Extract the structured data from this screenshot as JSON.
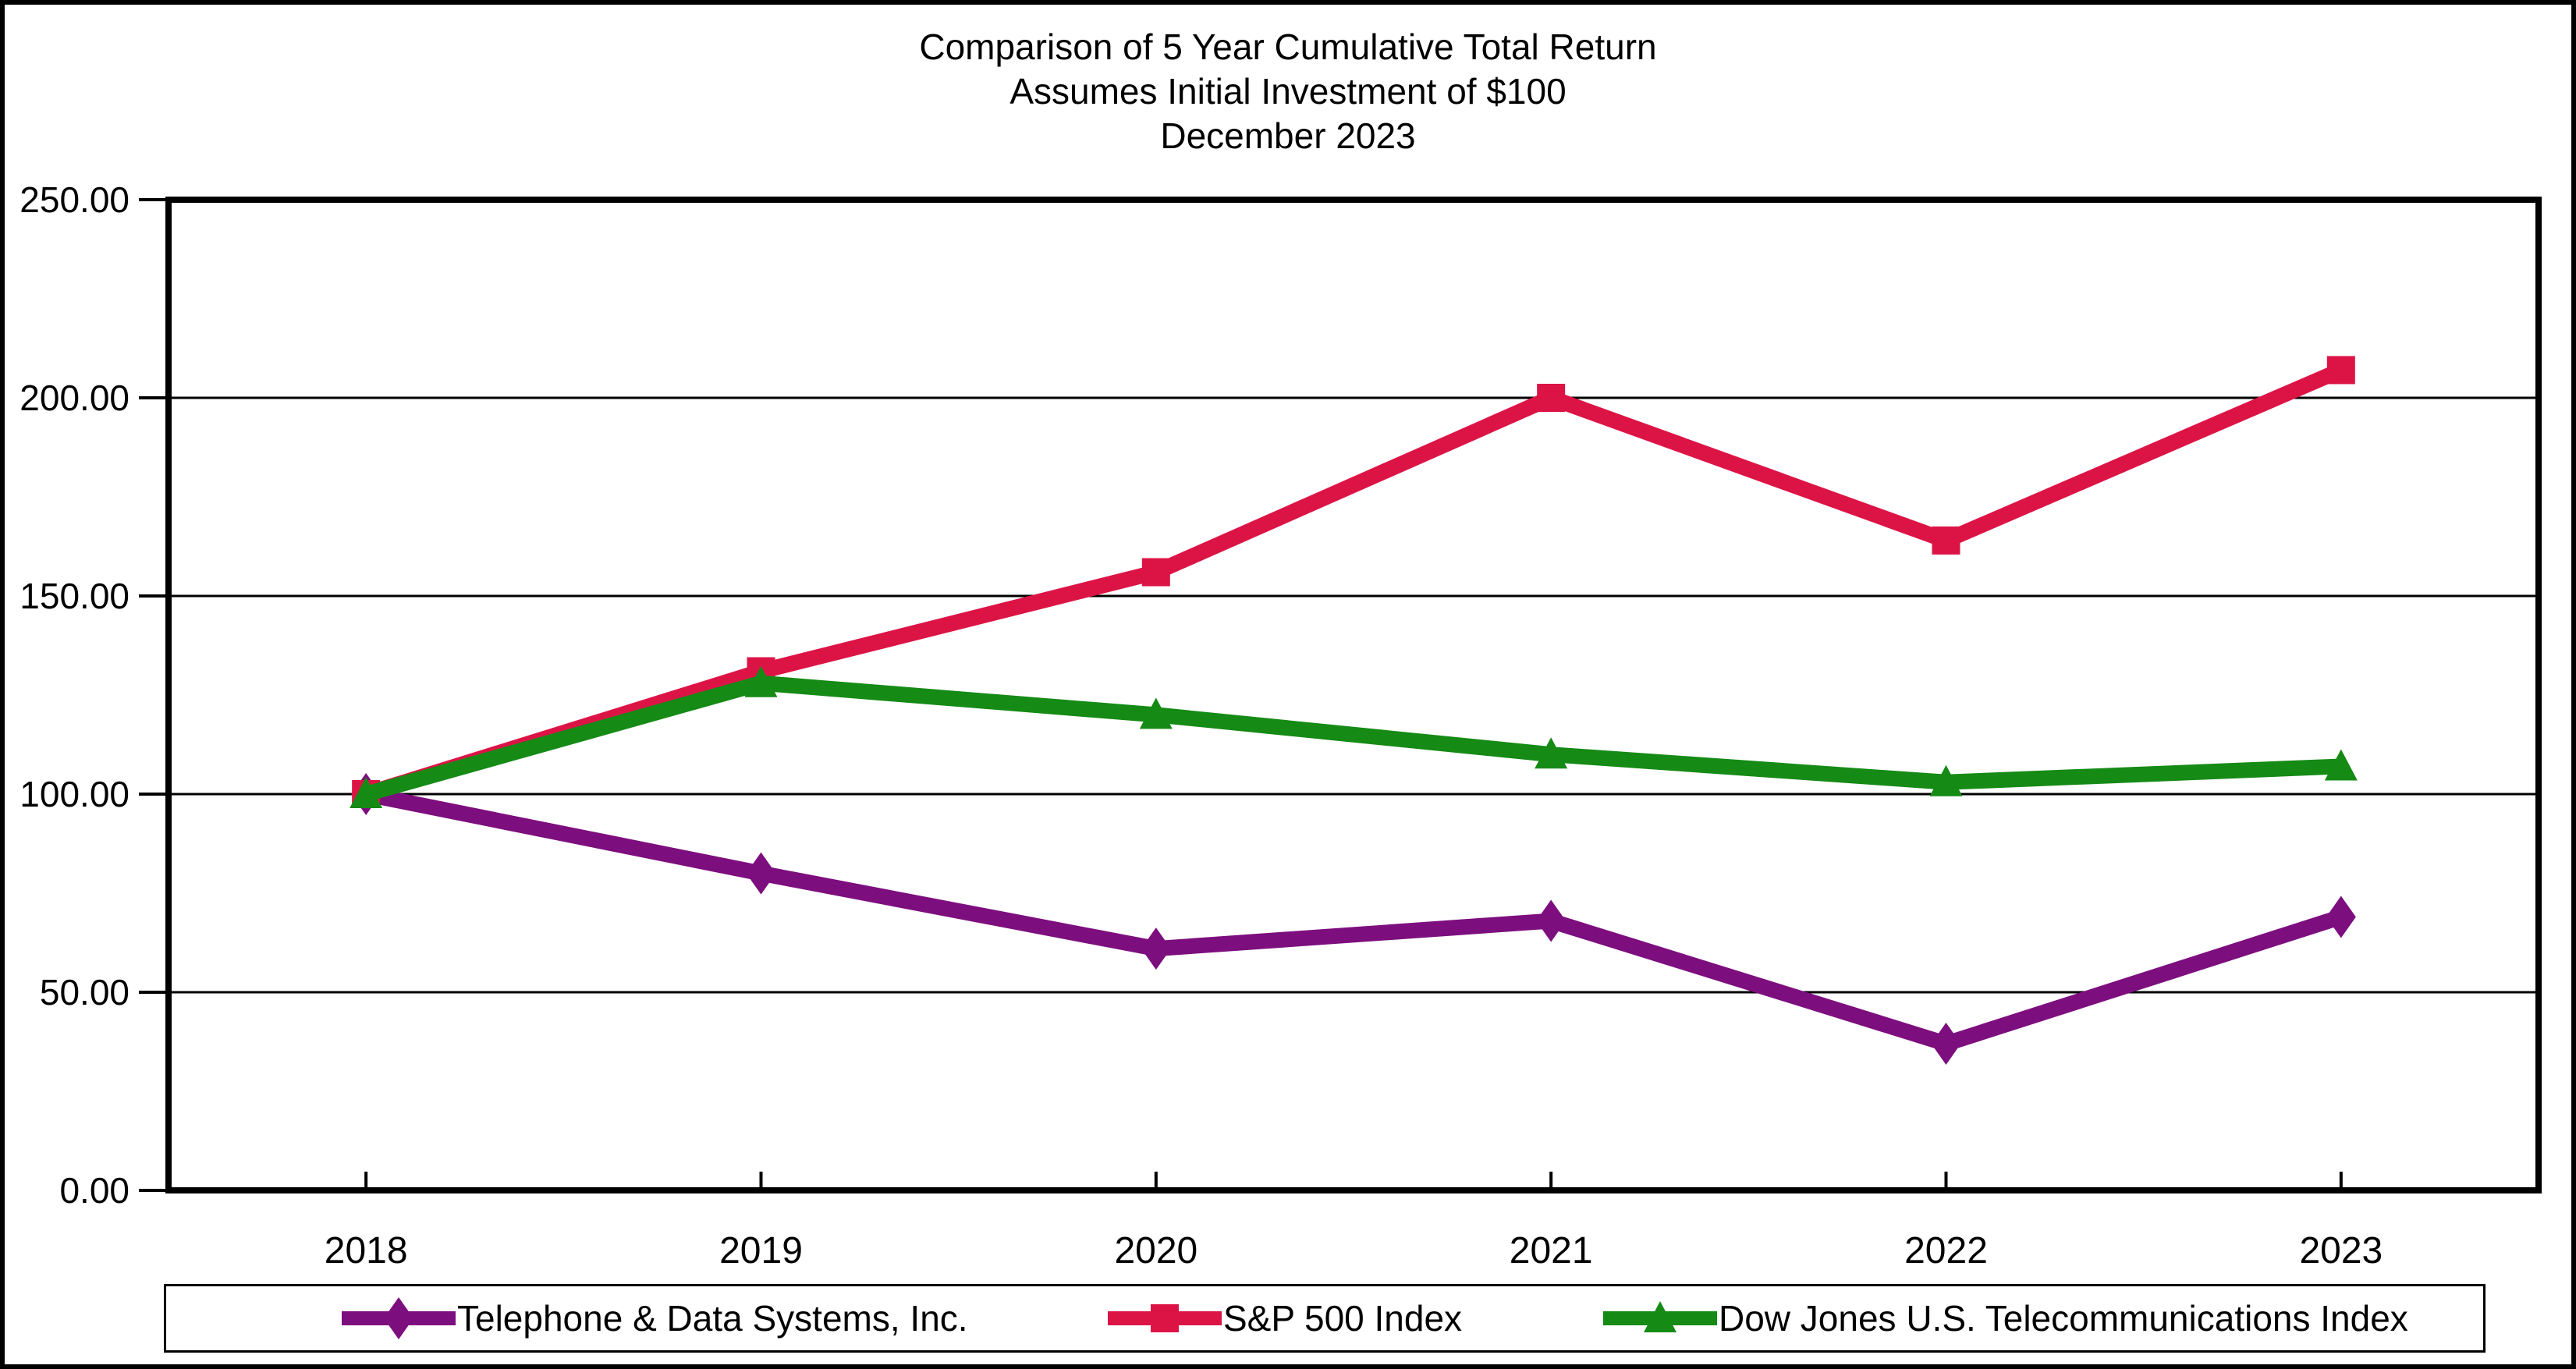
{
  "page": {
    "background": "#ffffff",
    "frame_border_color": "#000000"
  },
  "chart_data": {
    "type": "line",
    "title_lines": [
      "Comparison of 5 Year Cumulative Total Return",
      "Assumes Initial Investment of $100",
      "December 2023"
    ],
    "x_categories": [
      "2018",
      "2019",
      "2020",
      "2021",
      "2022",
      "2023"
    ],
    "y_axis": {
      "min": 0,
      "max": 250,
      "tick_interval": 50,
      "tick_labels_top_to_bottom": [
        "250.00",
        "200.00",
        "150.00",
        "100.00",
        "50.00",
        "0.00"
      ]
    },
    "grid": true,
    "legend_position": "bottom",
    "axis_color": "#000000",
    "series": [
      {
        "name": "Telephone & Data Systems, Inc.",
        "color": "#7D0E7E",
        "marker": "diamond",
        "values": [
          100,
          80,
          61,
          68,
          37,
          69
        ]
      },
      {
        "name": "S&P 500 Index",
        "color": "#DC1446",
        "marker": "square",
        "values": [
          100,
          131,
          156,
          200,
          164,
          207
        ]
      },
      {
        "name": "Dow Jones U.S. Telecommunications Index",
        "color": "#158A15",
        "marker": "triangle",
        "values": [
          100,
          128,
          120,
          110,
          103,
          107
        ]
      }
    ]
  }
}
